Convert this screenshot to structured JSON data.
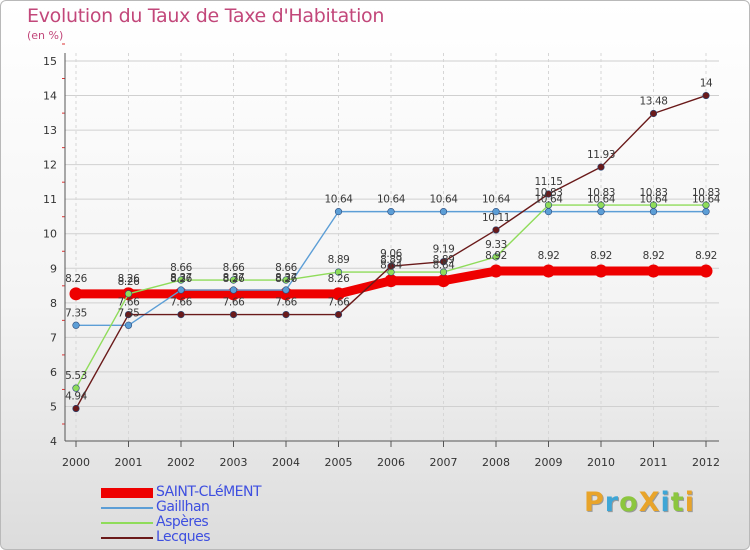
{
  "title": "Evolution du Taux de Taxe d'Habitation",
  "unit": "(en %)",
  "brand": {
    "text": "ProXiti",
    "letters": [
      {
        "ch": "P",
        "color": "#e8a42a"
      },
      {
        "ch": "r",
        "color": "#3ea6d6"
      },
      {
        "ch": "o",
        "color": "#8cc63f"
      },
      {
        "ch": "X",
        "color": "#e8a42a"
      },
      {
        "ch": "i",
        "color": "#3ea6d6"
      },
      {
        "ch": "t",
        "color": "#8cc63f"
      },
      {
        "ch": "i",
        "color": "#e8a42a"
      }
    ]
  },
  "chart_data": {
    "type": "line",
    "title": "Evolution du Taux de Taxe d'Habitation",
    "ylabel": "(en %)",
    "xlabel": "",
    "categories": [
      "2000",
      "2001",
      "2002",
      "2003",
      "2004",
      "2005",
      "2006",
      "2007",
      "2008",
      "2009",
      "2010",
      "2011",
      "2012"
    ],
    "ylim": [
      4,
      15
    ],
    "yticks": [
      "4",
      "5",
      "6",
      "7",
      "8",
      "9",
      "10",
      "11",
      "12",
      "13",
      "14",
      "15"
    ],
    "grid": true,
    "legend_position": "bottom-left",
    "series": [
      {
        "name": "SAINT-CLéMENT",
        "color": "#ee0000",
        "values": [
          8.26,
          8.26,
          8.26,
          8.26,
          8.26,
          8.26,
          8.64,
          8.64,
          8.92,
          8.92,
          8.92,
          8.92,
          8.92
        ],
        "labels": [
          "8.26",
          "8.26",
          "8.26",
          "8.26",
          "8.26",
          "8.26",
          "8.64",
          "8.64",
          "8.92",
          "8.92",
          "8.92",
          "8.92",
          "8.92"
        ]
      },
      {
        "name": "Gaillhan",
        "color": "#5c9ed6",
        "values": [
          7.35,
          7.35,
          8.37,
          8.37,
          8.37,
          10.64,
          10.64,
          10.64,
          10.64,
          10.64,
          10.64,
          10.64,
          10.64
        ],
        "labels": [
          "7.35",
          "7.35",
          "8.37",
          "8.37",
          "8.37",
          "10.64",
          "10.64",
          "10.64",
          "10.64",
          "10.64",
          "10.64",
          "10.64",
          "10.64"
        ]
      },
      {
        "name": "Aspères",
        "color": "#8fdc5a",
        "values": [
          5.53,
          8.26,
          8.66,
          8.66,
          8.66,
          8.89,
          8.89,
          8.89,
          9.33,
          10.83,
          10.83,
          10.83,
          10.83
        ],
        "labels": [
          "5.53",
          "8.26",
          "8.66",
          "8.66",
          "8.66",
          "8.89",
          "8.89",
          "8.89",
          "9.33",
          "10.83",
          "10.83",
          "10.83",
          "10.83"
        ]
      },
      {
        "name": "Lecques",
        "color": "#6a1a1a",
        "values": [
          4.94,
          7.66,
          7.66,
          7.66,
          7.66,
          7.66,
          9.06,
          9.19,
          10.11,
          11.15,
          11.93,
          13.48,
          14
        ],
        "labels": [
          "4.94",
          "7.66",
          "7.66",
          "7.66",
          "7.66",
          "7.66",
          "9.06",
          "9.19",
          "10.11",
          "11.15",
          "11.93",
          "13.48",
          "14"
        ]
      }
    ]
  }
}
